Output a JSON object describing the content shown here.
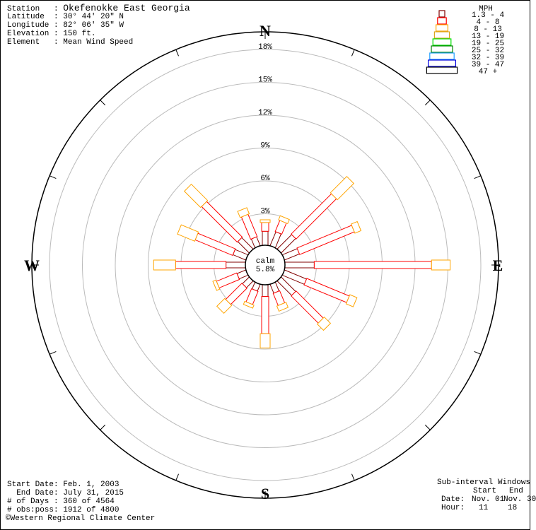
{
  "station_info": [
    {
      "label": "Station   ",
      "value": "Okefenokke East Georgia"
    },
    {
      "label": "Latitude  ",
      "value": "30° 44' 20\" N"
    },
    {
      "label": "Longitude ",
      "value": "82° 06' 35\" W"
    },
    {
      "label": "Elevation ",
      "value": "150 ft."
    },
    {
      "label": "Element   ",
      "value": "Mean Wind Speed"
    }
  ],
  "period_info": [
    {
      "label": "Start Date",
      "value": "Feb. 1, 2003"
    },
    {
      "label": "  End Date",
      "value": "July 31, 2015"
    },
    {
      "label": "# of Days ",
      "value": "360 of 4564"
    },
    {
      "label": "# obs:poss",
      "value": "1912 of 4800"
    }
  ],
  "credit": "Western Regional Climate Center",
  "credit_symbol": "©",
  "subinterval": {
    "title": "Sub-interval Windows",
    "col_start": "Start",
    "col_end": "End",
    "date_label": "Date:",
    "date_start": "Nov. 01",
    "date_end": "Nov. 30",
    "hour_label": "Hour:",
    "hour_start": "11",
    "hour_end": "18"
  },
  "chart_data": {
    "type": "wind-rose",
    "directions": [
      "N",
      "NNE",
      "NE",
      "ENE",
      "E",
      "ESE",
      "SE",
      "SSE",
      "S",
      "SSW",
      "SW",
      "WSW",
      "W",
      "WNW",
      "NW",
      "NNW"
    ],
    "cardinal_labels": {
      "N": "N",
      "E": "E",
      "S": "S",
      "W": "W"
    },
    "calm_label": "calm",
    "calm_percent": "5.8%",
    "ring_labels": [
      "3%",
      "6%",
      "9%",
      "12%",
      "15%",
      "18%"
    ],
    "ring_values": [
      3,
      6,
      9,
      12,
      15,
      18
    ],
    "legend": {
      "title": "MPH",
      "bins": [
        {
          "label": "1.3 - 4",
          "color": "#800000"
        },
        {
          "label": "4 - 8",
          "color": "#ff0000"
        },
        {
          "label": "8 - 13",
          "color": "#ffa500"
        },
        {
          "label": "13 - 19",
          "color": "#daa520"
        },
        {
          "label": "19 - 25",
          "color": "#00e000"
        },
        {
          "label": "25 - 32",
          "color": "#008000"
        },
        {
          "label": "32 - 39",
          "color": "#1e9fff"
        },
        {
          "label": "39 - 47",
          "color": "#0000e0"
        },
        {
          "label": "47 +",
          "color": "#000000"
        }
      ]
    },
    "series_percent_by_bin": [
      [
        1.4,
        0.8,
        0.25
      ],
      [
        1.5,
        1.1,
        0.4
      ],
      [
        2.0,
        5.2,
        2.1
      ],
      [
        1.6,
        5.4,
        0.6
      ],
      [
        2.8,
        10.7,
        1.7
      ],
      [
        2.3,
        4.2,
        0.7
      ],
      [
        2.0,
        3.5,
        0.8
      ],
      [
        1.0,
        1.2,
        0.5
      ],
      [
        1.2,
        3.4,
        1.3
      ],
      [
        0.8,
        1.3,
        0.3
      ],
      [
        1.0,
        2.1,
        1.0
      ],
      [
        1.0,
        2.0,
        0.3
      ],
      [
        1.9,
        4.6,
        2.0
      ],
      [
        1.4,
        3.7,
        1.7
      ],
      [
        1.6,
        4.6,
        2.1
      ],
      [
        1.0,
        2.2,
        0.6
      ]
    ]
  }
}
